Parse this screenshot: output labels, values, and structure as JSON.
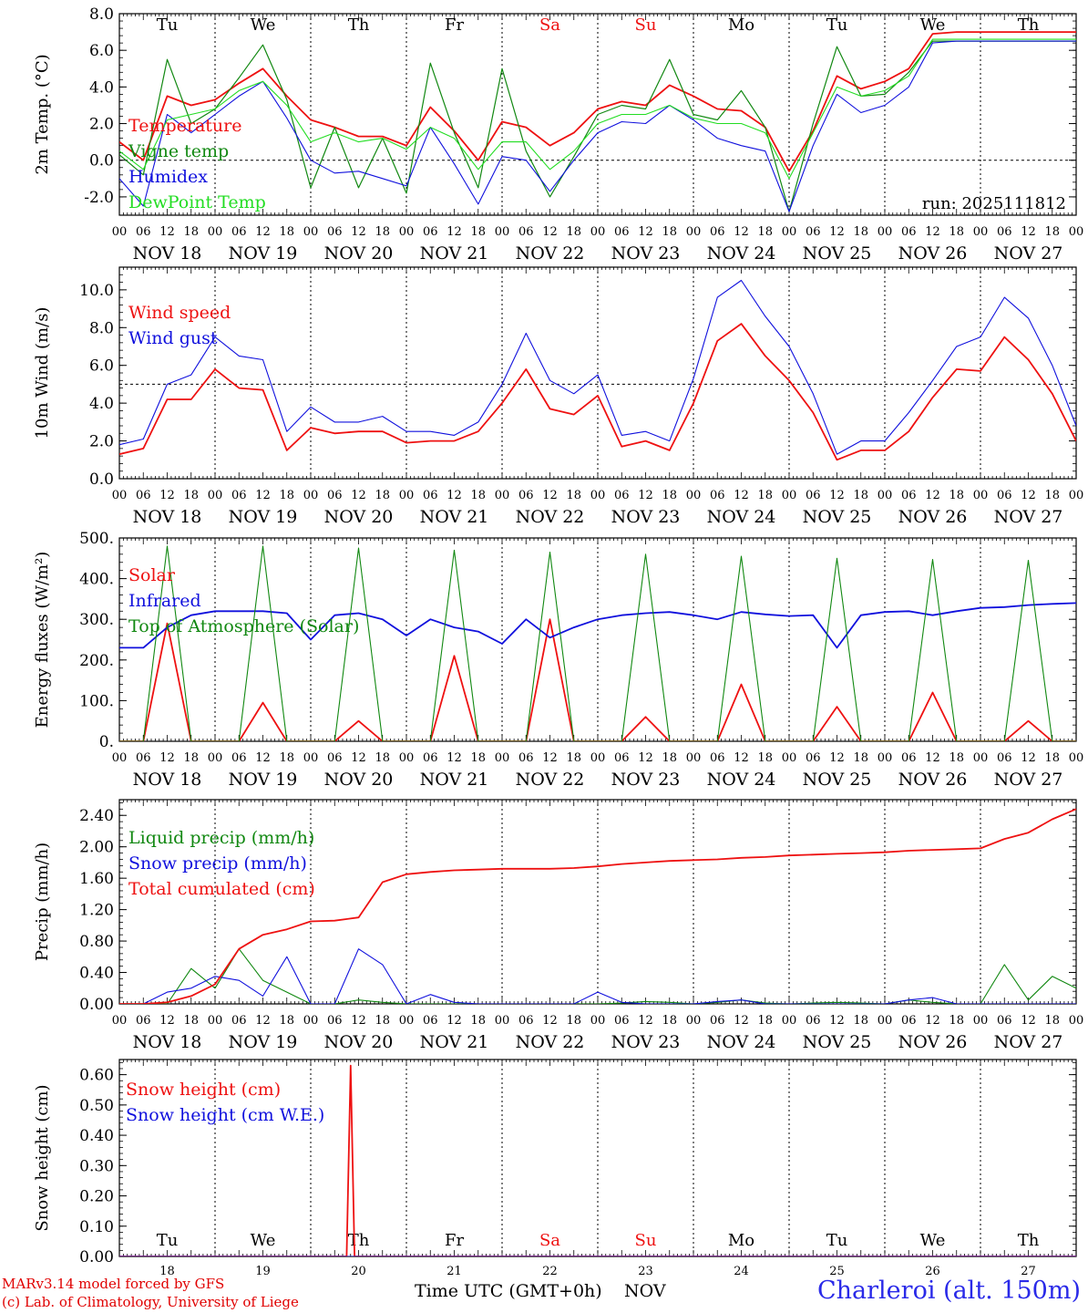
{
  "colors": {
    "red": "#ee1111",
    "green": "#118811",
    "blue": "#1010dd",
    "lightgreen": "#22dd22",
    "black": "#000000"
  },
  "days": {
    "weekdays": [
      "Tu",
      "We",
      "Th",
      "Fr",
      "Sa",
      "Su",
      "Mo",
      "Tu",
      "We",
      "Th"
    ],
    "weekend_flags": [
      false,
      false,
      false,
      false,
      true,
      true,
      false,
      false,
      false,
      false
    ],
    "dates": [
      "NOV 18",
      "NOV 19",
      "NOV 20",
      "NOV 21",
      "NOV 22",
      "NOV 23",
      "NOV 24",
      "NOV 25",
      "NOV 26",
      "NOV 27"
    ],
    "day_numbers": [
      "18",
      "19",
      "20",
      "21",
      "22",
      "23",
      "24",
      "25",
      "26",
      "27"
    ],
    "hour_ticks": [
      "00",
      "06",
      "12",
      "18"
    ],
    "end_tick": "00"
  },
  "footer": {
    "credit_line1": "MARv3.14 model forced by GFS",
    "credit_line2": "(c) Lab. of Climatology, University of Liege",
    "xaxis_title": "Time UTC (GMT+0h)",
    "month": "NOV",
    "station": "Charleroi (alt. 150m)"
  },
  "chart_data": [
    {
      "type": "line",
      "title": "",
      "ylabel": "2m Temp. (°C)",
      "ylim": [
        -3,
        8
      ],
      "yticks": [
        -2,
        0,
        2,
        4,
        6,
        8
      ],
      "ytick_labels": [
        "-2.0",
        "0.0",
        "2.0",
        "4.0",
        "6.0",
        "8.0"
      ],
      "reference_line": 0,
      "show_weekdays": true,
      "run_label": "run: 2025111812",
      "x_hours": [
        0,
        6,
        12,
        18,
        24,
        30,
        36,
        42,
        48,
        54,
        60,
        66,
        72,
        78,
        84,
        90,
        96,
        102,
        108,
        114,
        120,
        126,
        132,
        138,
        144,
        150,
        156,
        162,
        168,
        174,
        180,
        186,
        192,
        198,
        204,
        210,
        216,
        222,
        228,
        234,
        240
      ],
      "series": [
        {
          "name": "Temperature",
          "color": "red",
          "width": 1.8,
          "values": [
            1.0,
            0.0,
            3.5,
            3.0,
            3.3,
            4.2,
            5.0,
            3.5,
            2.2,
            1.8,
            1.3,
            1.3,
            0.8,
            2.9,
            1.6,
            0.0,
            2.1,
            1.8,
            0.8,
            1.5,
            2.8,
            3.2,
            3.0,
            4.1,
            3.5,
            2.8,
            2.7,
            1.8,
            -0.6,
            1.6,
            4.6,
            3.9,
            4.3,
            5.0,
            6.9,
            7.0,
            7.0,
            7.0,
            7.0,
            7.0,
            7.0
          ]
        },
        {
          "name": "Vigne temp",
          "color": "green",
          "width": 1.2,
          "values": [
            0.3,
            -0.8,
            5.5,
            2.0,
            2.8,
            4.5,
            6.3,
            3.3,
            -1.5,
            1.8,
            -1.5,
            1.2,
            -1.8,
            5.3,
            1.5,
            -1.5,
            5.0,
            0.5,
            -2.0,
            0.2,
            2.5,
            3.0,
            2.8,
            5.5,
            2.5,
            2.2,
            3.8,
            1.8,
            -2.8,
            2.0,
            6.2,
            3.5,
            3.6,
            4.8,
            6.5,
            6.5,
            6.5,
            6.5,
            6.5,
            6.5,
            6.5
          ]
        },
        {
          "name": "Humidex",
          "color": "blue",
          "width": 1.1,
          "values": [
            -1.0,
            -2.5,
            2.5,
            1.5,
            2.5,
            3.5,
            4.3,
            2.3,
            0.0,
            -0.7,
            -0.6,
            -1.0,
            -1.4,
            1.8,
            -0.2,
            -2.4,
            0.2,
            0.0,
            -1.7,
            0.0,
            1.5,
            2.1,
            2.0,
            3.0,
            2.2,
            1.2,
            0.8,
            0.5,
            -2.8,
            0.8,
            3.6,
            2.6,
            3.0,
            4.0,
            6.4,
            6.5,
            6.5,
            6.5,
            6.5,
            6.5,
            6.5
          ]
        },
        {
          "name": "DewPoint Temp",
          "color": "lightgreen",
          "width": 1.1,
          "values": [
            0.5,
            -0.5,
            2.2,
            2.5,
            2.8,
            3.8,
            4.3,
            3.0,
            1.0,
            1.5,
            1.0,
            1.2,
            0.6,
            1.8,
            1.2,
            -0.5,
            1.0,
            1.0,
            -0.5,
            0.5,
            2.0,
            2.5,
            2.5,
            3.0,
            2.3,
            2.0,
            2.0,
            1.5,
            -1.0,
            1.5,
            4.0,
            3.5,
            3.8,
            4.6,
            6.6,
            6.6,
            6.6,
            6.6,
            6.6,
            6.6,
            6.6
          ]
        }
      ]
    },
    {
      "type": "line",
      "title": "",
      "ylabel": "10m Wind (m/s)",
      "ylim": [
        0,
        11.2
      ],
      "yticks": [
        0,
        2,
        4,
        6,
        8,
        10
      ],
      "ytick_labels": [
        "0.0",
        "2.0",
        "4.0",
        "6.0",
        "8.0",
        "10.0"
      ],
      "reference_line": 5,
      "show_weekdays": false,
      "x_hours": [
        0,
        6,
        12,
        18,
        24,
        30,
        36,
        42,
        48,
        54,
        60,
        66,
        72,
        78,
        84,
        90,
        96,
        102,
        108,
        114,
        120,
        126,
        132,
        138,
        144,
        150,
        156,
        162,
        168,
        174,
        180,
        186,
        192,
        198,
        204,
        210,
        216,
        222,
        228,
        234,
        240
      ],
      "series": [
        {
          "name": "Wind speed",
          "color": "red",
          "width": 1.8,
          "values": [
            1.3,
            1.6,
            4.2,
            4.2,
            5.8,
            4.8,
            4.7,
            1.5,
            2.7,
            2.4,
            2.5,
            2.5,
            1.9,
            2.0,
            2.0,
            2.5,
            4.0,
            5.8,
            3.7,
            3.4,
            4.4,
            1.7,
            2.0,
            1.5,
            4.0,
            7.3,
            8.2,
            6.5,
            5.2,
            3.5,
            1.0,
            1.5,
            1.5,
            2.5,
            4.3,
            5.8,
            5.7,
            7.5,
            6.3,
            4.5,
            2.0
          ]
        },
        {
          "name": "Wind gust",
          "color": "blue",
          "width": 1.1,
          "values": [
            1.8,
            2.1,
            5.0,
            5.5,
            7.5,
            6.5,
            6.3,
            2.5,
            3.8,
            3.0,
            3.0,
            3.3,
            2.5,
            2.5,
            2.3,
            3.0,
            5.0,
            7.7,
            5.2,
            4.5,
            5.5,
            2.3,
            2.5,
            2.0,
            5.3,
            9.6,
            10.5,
            8.6,
            7.0,
            4.5,
            1.3,
            2.0,
            2.0,
            3.5,
            5.2,
            7.0,
            7.5,
            9.6,
            8.5,
            6.0,
            2.8
          ]
        }
      ]
    },
    {
      "type": "line",
      "title": "",
      "ylabel": "Energy fluxes (W/m²)",
      "ylim": [
        0,
        500
      ],
      "yticks": [
        0,
        100,
        200,
        300,
        400,
        500
      ],
      "ytick_labels": [
        "0.",
        "100.",
        "200.",
        "300.",
        "400.",
        "500."
      ],
      "show_weekdays": false,
      "x_hours": [
        0,
        6,
        12,
        18,
        24,
        30,
        36,
        42,
        48,
        54,
        60,
        66,
        72,
        78,
        84,
        90,
        96,
        102,
        108,
        114,
        120,
        126,
        132,
        138,
        144,
        150,
        156,
        162,
        168,
        174,
        180,
        186,
        192,
        198,
        204,
        210,
        216,
        222,
        228,
        234,
        240
      ],
      "series": [
        {
          "name": "Solar",
          "color": "red",
          "width": 1.8,
          "values": [
            0,
            0,
            290,
            0,
            0,
            0,
            95,
            0,
            0,
            0,
            50,
            0,
            0,
            0,
            210,
            0,
            0,
            0,
            300,
            0,
            0,
            0,
            60,
            0,
            0,
            0,
            140,
            0,
            0,
            0,
            85,
            0,
            0,
            0,
            120,
            0,
            0,
            0,
            50,
            0,
            0
          ]
        },
        {
          "name": "Infrared",
          "color": "blue",
          "width": 1.8,
          "values": [
            230,
            230,
            280,
            310,
            320,
            320,
            320,
            315,
            250,
            310,
            315,
            300,
            260,
            300,
            280,
            270,
            240,
            300,
            255,
            280,
            300,
            310,
            315,
            318,
            310,
            300,
            318,
            312,
            308,
            310,
            230,
            310,
            318,
            320,
            310,
            320,
            328,
            330,
            335,
            338,
            340
          ]
        },
        {
          "name": "Top of Atmosphere (Solar)",
          "color": "green",
          "width": 1.1,
          "values": [
            0,
            0,
            480,
            0,
            0,
            0,
            480,
            0,
            0,
            0,
            475,
            0,
            0,
            0,
            470,
            0,
            0,
            0,
            465,
            0,
            0,
            0,
            460,
            0,
            0,
            0,
            455,
            0,
            0,
            0,
            450,
            0,
            0,
            0,
            447,
            0,
            0,
            0,
            445,
            0,
            0
          ]
        }
      ]
    },
    {
      "type": "line",
      "title": "",
      "ylabel": "Precip (mm/h)",
      "ylim": [
        0,
        2.6
      ],
      "yticks": [
        0,
        0.4,
        0.8,
        1.2,
        1.6,
        2.0,
        2.4
      ],
      "ytick_labels": [
        "0.00",
        "0.40",
        "0.80",
        "1.20",
        "1.60",
        "2.00",
        "2.40"
      ],
      "show_weekdays": false,
      "x_hours": [
        0,
        6,
        12,
        18,
        24,
        30,
        36,
        42,
        48,
        54,
        60,
        66,
        72,
        78,
        84,
        90,
        96,
        102,
        108,
        114,
        120,
        126,
        132,
        138,
        144,
        150,
        156,
        162,
        168,
        174,
        180,
        186,
        192,
        198,
        204,
        210,
        216,
        222,
        228,
        234,
        240
      ],
      "series": [
        {
          "name": "Liquid precip (mm/h)",
          "color": "green",
          "width": 1.1,
          "values": [
            0,
            0,
            0,
            0.45,
            0.2,
            0.7,
            0.3,
            0.15,
            0,
            0,
            0.05,
            0.02,
            0,
            0,
            0,
            0,
            0,
            0,
            0,
            0,
            0,
            0.01,
            0.03,
            0.02,
            0,
            0.02,
            0.05,
            0.01,
            0,
            0.01,
            0.02,
            0.01,
            0,
            0.05,
            0.02,
            0,
            0,
            0.5,
            0.05,
            0.35,
            0.2
          ]
        },
        {
          "name": "Snow precip (mm/h)",
          "color": "blue",
          "width": 1.1,
          "values": [
            0,
            0,
            0.15,
            0.2,
            0.35,
            0.3,
            0.1,
            0.6,
            0,
            0,
            0.7,
            0.5,
            0,
            0.12,
            0.02,
            0,
            0,
            0,
            0,
            0,
            0.15,
            0.02,
            0,
            0,
            0,
            0.03,
            0.05,
            0,
            0,
            0,
            0,
            0,
            0,
            0.05,
            0.08,
            0,
            0,
            0,
            0,
            0,
            0
          ]
        },
        {
          "name": "Total cumulated (cm)",
          "color": "red",
          "width": 1.8,
          "values": [
            0,
            0,
            0.02,
            0.1,
            0.25,
            0.7,
            0.88,
            0.95,
            1.05,
            1.06,
            1.1,
            1.55,
            1.65,
            1.68,
            1.7,
            1.71,
            1.72,
            1.72,
            1.72,
            1.73,
            1.75,
            1.78,
            1.8,
            1.82,
            1.83,
            1.84,
            1.86,
            1.87,
            1.89,
            1.9,
            1.91,
            1.92,
            1.93,
            1.95,
            1.96,
            1.97,
            1.98,
            2.1,
            2.18,
            2.35,
            2.48
          ]
        }
      ]
    },
    {
      "type": "line",
      "title": "",
      "ylabel": "Snow height (cm)",
      "ylim": [
        0,
        0.65
      ],
      "yticks": [
        0,
        0.1,
        0.2,
        0.3,
        0.4,
        0.5,
        0.6
      ],
      "ytick_labels": [
        "0.00",
        "0.10",
        "0.20",
        "0.30",
        "0.40",
        "0.50",
        "0.60"
      ],
      "show_weekdays": true,
      "x_hours": [
        0,
        57,
        58,
        59,
        60,
        240
      ],
      "series": [
        {
          "name": "Snow height (cm)",
          "color": "red",
          "width": 1.8,
          "values": [
            0,
            0,
            0.63,
            0,
            0,
            0
          ]
        },
        {
          "name": "Snow height (cm W.E.)",
          "color": "blue",
          "width": 1.1,
          "values": [
            0,
            0,
            0,
            0,
            0,
            0
          ]
        }
      ]
    }
  ]
}
